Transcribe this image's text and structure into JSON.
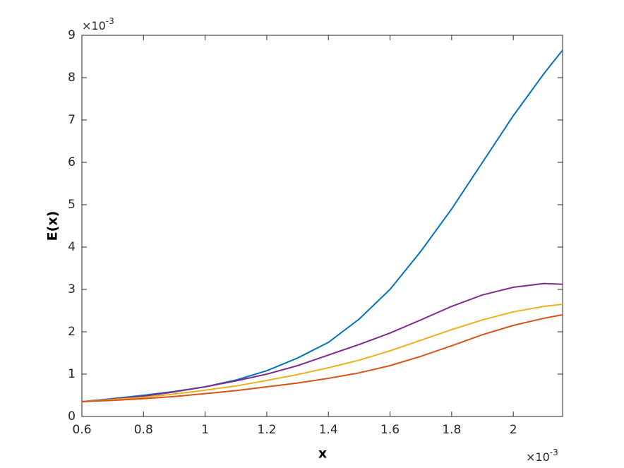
{
  "chart_data": {
    "type": "line",
    "xlabel": "x",
    "ylabel": "E(x)",
    "x_multiplier": {
      "base": "×10",
      "exponent": "-3"
    },
    "y_multiplier": {
      "base": "×10",
      "exponent": "-3"
    },
    "x": [
      0.6,
      0.7,
      0.8,
      0.9,
      1.0,
      1.1,
      1.2,
      1.3,
      1.4,
      1.5,
      1.6,
      1.7,
      1.8,
      1.9,
      2.0,
      2.1,
      2.16
    ],
    "series": [
      {
        "color": "#0072BD",
        "values": [
          0.35,
          0.42,
          0.5,
          0.59,
          0.7,
          0.86,
          1.08,
          1.38,
          1.75,
          2.3,
          3.0,
          3.9,
          4.9,
          6.0,
          7.1,
          8.1,
          8.65
        ]
      },
      {
        "color": "#7E2F8E",
        "values": [
          0.35,
          0.41,
          0.48,
          0.58,
          0.7,
          0.84,
          1.0,
          1.2,
          1.45,
          1.7,
          1.97,
          2.28,
          2.6,
          2.87,
          3.05,
          3.14,
          3.12
        ]
      },
      {
        "color": "#EDB120",
        "values": [
          0.35,
          0.4,
          0.45,
          0.53,
          0.62,
          0.72,
          0.85,
          0.99,
          1.15,
          1.33,
          1.55,
          1.8,
          2.05,
          2.28,
          2.47,
          2.6,
          2.65
        ]
      },
      {
        "color": "#D95319",
        "values": [
          0.35,
          0.38,
          0.42,
          0.47,
          0.54,
          0.61,
          0.7,
          0.79,
          0.9,
          1.03,
          1.2,
          1.42,
          1.67,
          1.93,
          2.15,
          2.32,
          2.4
        ]
      }
    ],
    "xlim": [
      0.6,
      2.16
    ],
    "xticks": [
      0.6,
      0.8,
      1,
      1.2,
      1.4,
      1.6,
      1.8,
      2
    ],
    "ylim": [
      0,
      9
    ],
    "yticks": [
      0,
      1,
      2,
      3,
      4,
      5,
      6,
      7,
      8,
      9
    ],
    "grid": false
  }
}
